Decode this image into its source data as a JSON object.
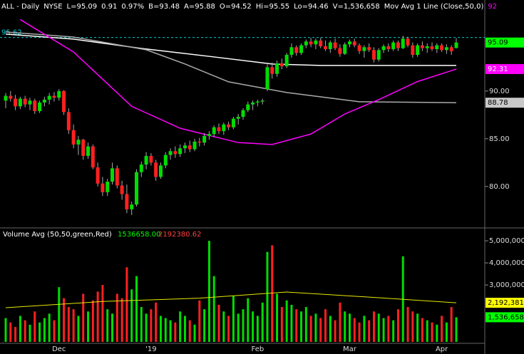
{
  "chart_data": {
    "type": "candlestick",
    "header": [
      {
        "text": "ALL - Daily",
        "color": "#ffffff"
      },
      {
        "text": "NYSE",
        "color": "#ffffff"
      },
      {
        "text": "L=95.09",
        "color": "#ffffff"
      },
      {
        "text": "0.91",
        "color": "#ffffff"
      },
      {
        "text": "0.97%",
        "color": "#ffffff"
      },
      {
        "text": "B=93.48",
        "color": "#ffffff"
      },
      {
        "text": "A=95.88",
        "color": "#ffffff"
      },
      {
        "text": "O=94.52",
        "color": "#ffffff"
      },
      {
        "text": "Hi=95.55",
        "color": "#ffffff"
      },
      {
        "text": "Lo=94.46",
        "color": "#ffffff"
      },
      {
        "text": "V=1,536,658",
        "color": "#ffffff"
      },
      {
        "text": "Mov Avg 1 Line (Close,50,0)",
        "color": "#ffffff"
      },
      {
        "text": "92",
        "color": "#ff00ff"
      }
    ],
    "categories": [
      null,
      null,
      null,
      null,
      null,
      null,
      null,
      null,
      null,
      null,
      null,
      "Dec",
      null,
      null,
      null,
      null,
      null,
      null,
      null,
      null,
      null,
      null,
      null,
      null,
      null,
      null,
      null,
      null,
      null,
      null,
      "'19",
      null,
      null,
      null,
      null,
      null,
      null,
      null,
      null,
      null,
      null,
      null,
      null,
      null,
      null,
      null,
      null,
      null,
      null,
      null,
      null,
      null,
      "Feb",
      null,
      null,
      null,
      null,
      null,
      null,
      null,
      null,
      null,
      null,
      null,
      null,
      null,
      null,
      null,
      null,
      null,
      null,
      "Mar",
      null,
      null,
      null,
      null,
      null,
      null,
      null,
      null,
      null,
      null,
      null,
      null,
      null,
      null,
      null,
      null,
      null,
      null,
      "Apr",
      null,
      null,
      null
    ],
    "up_color": "#00dd00",
    "down_color": "#ff2020",
    "ohlc": [
      [
        89.0,
        89.8,
        88.2,
        89.5
      ],
      [
        89.5,
        90.0,
        88.9,
        89.2
      ],
      [
        89.2,
        89.6,
        88.0,
        88.4
      ],
      [
        88.4,
        89.4,
        88.1,
        89.2
      ],
      [
        89.2,
        89.5,
        88.3,
        88.6
      ],
      [
        88.6,
        89.3,
        88.0,
        89.0
      ],
      [
        89.0,
        89.2,
        87.6,
        87.9
      ],
      [
        87.9,
        89.0,
        87.7,
        88.8
      ],
      [
        88.8,
        89.4,
        88.4,
        89.1
      ],
      [
        89.1,
        89.8,
        88.6,
        89.5
      ],
      [
        89.5,
        89.9,
        88.9,
        89.3
      ],
      [
        89.3,
        90.2,
        89.0,
        90.0
      ],
      [
        90.0,
        90.1,
        87.5,
        87.8
      ],
      [
        87.8,
        88.2,
        85.5,
        85.9
      ],
      [
        85.9,
        86.5,
        84.0,
        84.4
      ],
      [
        84.4,
        85.3,
        83.3,
        84.9
      ],
      [
        84.9,
        85.0,
        82.8,
        83.2
      ],
      [
        83.2,
        84.6,
        82.9,
        84.2
      ],
      [
        84.2,
        84.4,
        81.8,
        82.0
      ],
      [
        82.0,
        82.5,
        80.0,
        80.3
      ],
      [
        80.3,
        81.0,
        79.0,
        79.4
      ],
      [
        79.4,
        80.8,
        79.0,
        80.5
      ],
      [
        80.5,
        82.5,
        80.2,
        81.9
      ],
      [
        81.9,
        82.2,
        79.8,
        80.1
      ],
      [
        80.1,
        80.6,
        78.6,
        79.2
      ],
      [
        79.2,
        80.2,
        77.2,
        77.6
      ],
      [
        77.6,
        78.4,
        77.0,
        78.1
      ],
      [
        78.1,
        81.8,
        77.9,
        81.5
      ],
      [
        81.5,
        82.6,
        81.0,
        82.3
      ],
      [
        82.3,
        83.6,
        81.8,
        83.2
      ],
      [
        83.2,
        83.5,
        82.2,
        82.5
      ],
      [
        82.5,
        82.8,
        80.6,
        81.0
      ],
      [
        81.0,
        82.5,
        80.8,
        82.2
      ],
      [
        82.2,
        83.6,
        81.9,
        83.3
      ],
      [
        83.3,
        84.0,
        82.8,
        83.7
      ],
      [
        83.7,
        84.2,
        83.0,
        83.4
      ],
      [
        83.4,
        84.4,
        83.1,
        84.0
      ],
      [
        84.0,
        84.6,
        83.5,
        84.3
      ],
      [
        84.3,
        84.8,
        83.6,
        83.9
      ],
      [
        83.9,
        85.0,
        83.7,
        84.7
      ],
      [
        84.7,
        85.1,
        84.2,
        84.6
      ],
      [
        84.6,
        85.6,
        84.3,
        85.3
      ],
      [
        85.3,
        85.8,
        84.9,
        85.5
      ],
      [
        85.5,
        86.4,
        85.2,
        86.2
      ],
      [
        86.2,
        86.6,
        85.5,
        85.8
      ],
      [
        85.8,
        86.7,
        85.4,
        86.5
      ],
      [
        86.5,
        86.8,
        85.9,
        86.2
      ],
      [
        86.2,
        87.3,
        86.0,
        87.1
      ],
      [
        87.1,
        87.6,
        86.5,
        87.3
      ],
      [
        87.3,
        88.2,
        87.0,
        88.0
      ],
      [
        88.0,
        88.9,
        87.8,
        88.6
      ],
      [
        88.6,
        89.0,
        88.0,
        88.8
      ],
      [
        88.8,
        89.1,
        88.4,
        88.9
      ],
      [
        88.9,
        89.2,
        88.6,
        89.0
      ],
      [
        90.2,
        92.8,
        90.0,
        92.5
      ],
      [
        92.5,
        93.0,
        91.3,
        91.8
      ],
      [
        91.8,
        93.2,
        91.5,
        92.9
      ],
      [
        92.9,
        93.4,
        92.3,
        92.6
      ],
      [
        92.6,
        94.0,
        92.4,
        93.8
      ],
      [
        93.8,
        95.0,
        93.5,
        94.6
      ],
      [
        94.6,
        94.8,
        93.7,
        94.0
      ],
      [
        94.0,
        95.0,
        93.8,
        94.8
      ],
      [
        94.8,
        95.4,
        94.5,
        95.2
      ],
      [
        95.2,
        95.6,
        94.6,
        94.9
      ],
      [
        94.9,
        95.5,
        94.4,
        95.3
      ],
      [
        95.3,
        95.6,
        94.5,
        94.7
      ],
      [
        94.7,
        95.3,
        94.2,
        94.4
      ],
      [
        94.4,
        95.3,
        94.0,
        95.1
      ],
      [
        95.1,
        95.5,
        94.3,
        94.5
      ],
      [
        94.5,
        94.9,
        93.6,
        93.9
      ],
      [
        93.9,
        95.1,
        93.8,
        94.9
      ],
      [
        94.9,
        95.4,
        94.6,
        95.2
      ],
      [
        95.2,
        95.5,
        94.6,
        94.8
      ],
      [
        94.8,
        95.0,
        93.9,
        94.2
      ],
      [
        94.2,
        94.8,
        93.5,
        94.6
      ],
      [
        94.6,
        95.0,
        94.1,
        94.3
      ],
      [
        94.3,
        94.6,
        93.0,
        93.3
      ],
      [
        93.3,
        94.5,
        93.1,
        94.3
      ],
      [
        94.3,
        94.9,
        94.0,
        94.7
      ],
      [
        94.7,
        95.0,
        94.1,
        94.4
      ],
      [
        94.4,
        95.3,
        94.2,
        95.1
      ],
      [
        95.1,
        95.3,
        94.2,
        94.5
      ],
      [
        94.5,
        95.8,
        94.4,
        95.5
      ],
      [
        95.5,
        95.7,
        94.6,
        94.8
      ],
      [
        94.8,
        95.1,
        93.5,
        93.8
      ],
      [
        93.8,
        95.0,
        93.6,
        94.8
      ],
      [
        94.8,
        95.2,
        94.2,
        94.5
      ],
      [
        94.5,
        95.0,
        94.0,
        94.7
      ],
      [
        94.7,
        95.1,
        94.2,
        94.4
      ],
      [
        94.4,
        95.0,
        94.0,
        94.8
      ],
      [
        94.8,
        95.0,
        94.1,
        94.3
      ],
      [
        94.3,
        94.9,
        93.9,
        94.6
      ],
      [
        94.6,
        94.8,
        93.8,
        94.18
      ],
      [
        94.52,
        95.55,
        94.46,
        95.09
      ]
    ],
    "moving_averages": [
      {
        "color": "#ffffff",
        "x": [
          0,
          14,
          28,
          43,
          55,
          65,
          93
        ],
        "values": [
          95.97,
          95.45,
          94.47,
          93.58,
          92.84,
          92.69,
          92.69
        ]
      },
      {
        "color": "#aaaaaa",
        "x": [
          0,
          14,
          29,
          37,
          46,
          58,
          73,
          93
        ],
        "values": [
          96.2,
          95.67,
          94.33,
          92.84,
          90.97,
          89.85,
          88.88,
          88.78
        ]
      },
      {
        "color": "#ff00ff",
        "x": [
          3,
          14,
          26,
          36,
          48,
          55,
          63,
          70,
          77,
          85,
          93
        ],
        "values": [
          97.5,
          94.1,
          88.4,
          86.1,
          84.6,
          84.4,
          85.5,
          87.6,
          89.1,
          91.0,
          92.31
        ]
      }
    ],
    "ylim": [
      75.8,
      99.55
    ],
    "yticks": [
      {
        "value": 80,
        "label": "80.00"
      },
      {
        "value": 85,
        "label": "85.00"
      },
      {
        "value": 90,
        "label": "90.00"
      }
    ],
    "reference_line": {
      "value": 95.62,
      "label": "95.62",
      "color": "#00cccc"
    },
    "price_labels": [
      {
        "value": 95.09,
        "label": "95.09",
        "color": "#00ff00",
        "text_color": "#000000"
      },
      {
        "value": 92.31,
        "label": "92.31",
        "color": "#ff00ff",
        "text_color": "#ffffff"
      },
      {
        "value": 88.78,
        "label": "88.78",
        "color": "#c8c8c8",
        "text_color": "#000000"
      }
    ],
    "volume": {
      "title": "Volume Avg (50,50,green,Red)",
      "avg_text": "1536658.00",
      "avg2_text": "2192380.62",
      "values": [
        1500000,
        1300000,
        1100000,
        1600000,
        1400000,
        1200000,
        1800000,
        1300000,
        1500000,
        1700000,
        1400000,
        2900000,
        2400000,
        2000000,
        1900000,
        1600000,
        2600000,
        1800000,
        2300000,
        2700000,
        3000000,
        1900000,
        1700000,
        2600000,
        2400000,
        3800000,
        2800000,
        3400000,
        2000000,
        1700000,
        1900000,
        2200000,
        1600000,
        1500000,
        1400000,
        1300000,
        1800000,
        1600000,
        1400000,
        1200000,
        2300000,
        1900000,
        5000000,
        3400000,
        2100000,
        1800000,
        1600000,
        2500000,
        1700000,
        1900000,
        2400000,
        1800000,
        1600000,
        2200000,
        4500000,
        4800000,
        2600000,
        2000000,
        2300000,
        2100000,
        1900000,
        1800000,
        2000000,
        1600000,
        1700000,
        1500000,
        1900000,
        1600000,
        1400000,
        2200000,
        1800000,
        1700000,
        1500000,
        1300000,
        1600000,
        1400000,
        1800000,
        1700000,
        1500000,
        1600000,
        1400000,
        1900000,
        4300000,
        2000000,
        1800000,
        1700000,
        1500000,
        1400000,
        1300000,
        1200000,
        1600000,
        1300000,
        2000000,
        1536658
      ],
      "avg_line": {
        "color": "#e8e800",
        "x": [
          0,
          20,
          40,
          58,
          75,
          93
        ],
        "values": [
          1970000,
          2250000,
          2400000,
          2680000,
          2450000,
          2192381
        ]
      },
      "ylim": [
        420000,
        5520000
      ],
      "yticks": [
        {
          "value": 3000000,
          "label": "3,000,000"
        },
        {
          "value": 4000000,
          "label": "4,000,000"
        },
        {
          "value": 5000000,
          "label": "5,000,000"
        }
      ],
      "labels": [
        {
          "value": 2192381,
          "label": "2,192,381",
          "color": "#ffff00"
        },
        {
          "value": 1536658,
          "label": "1,536,658",
          "color": "#00ff00"
        }
      ]
    }
  }
}
